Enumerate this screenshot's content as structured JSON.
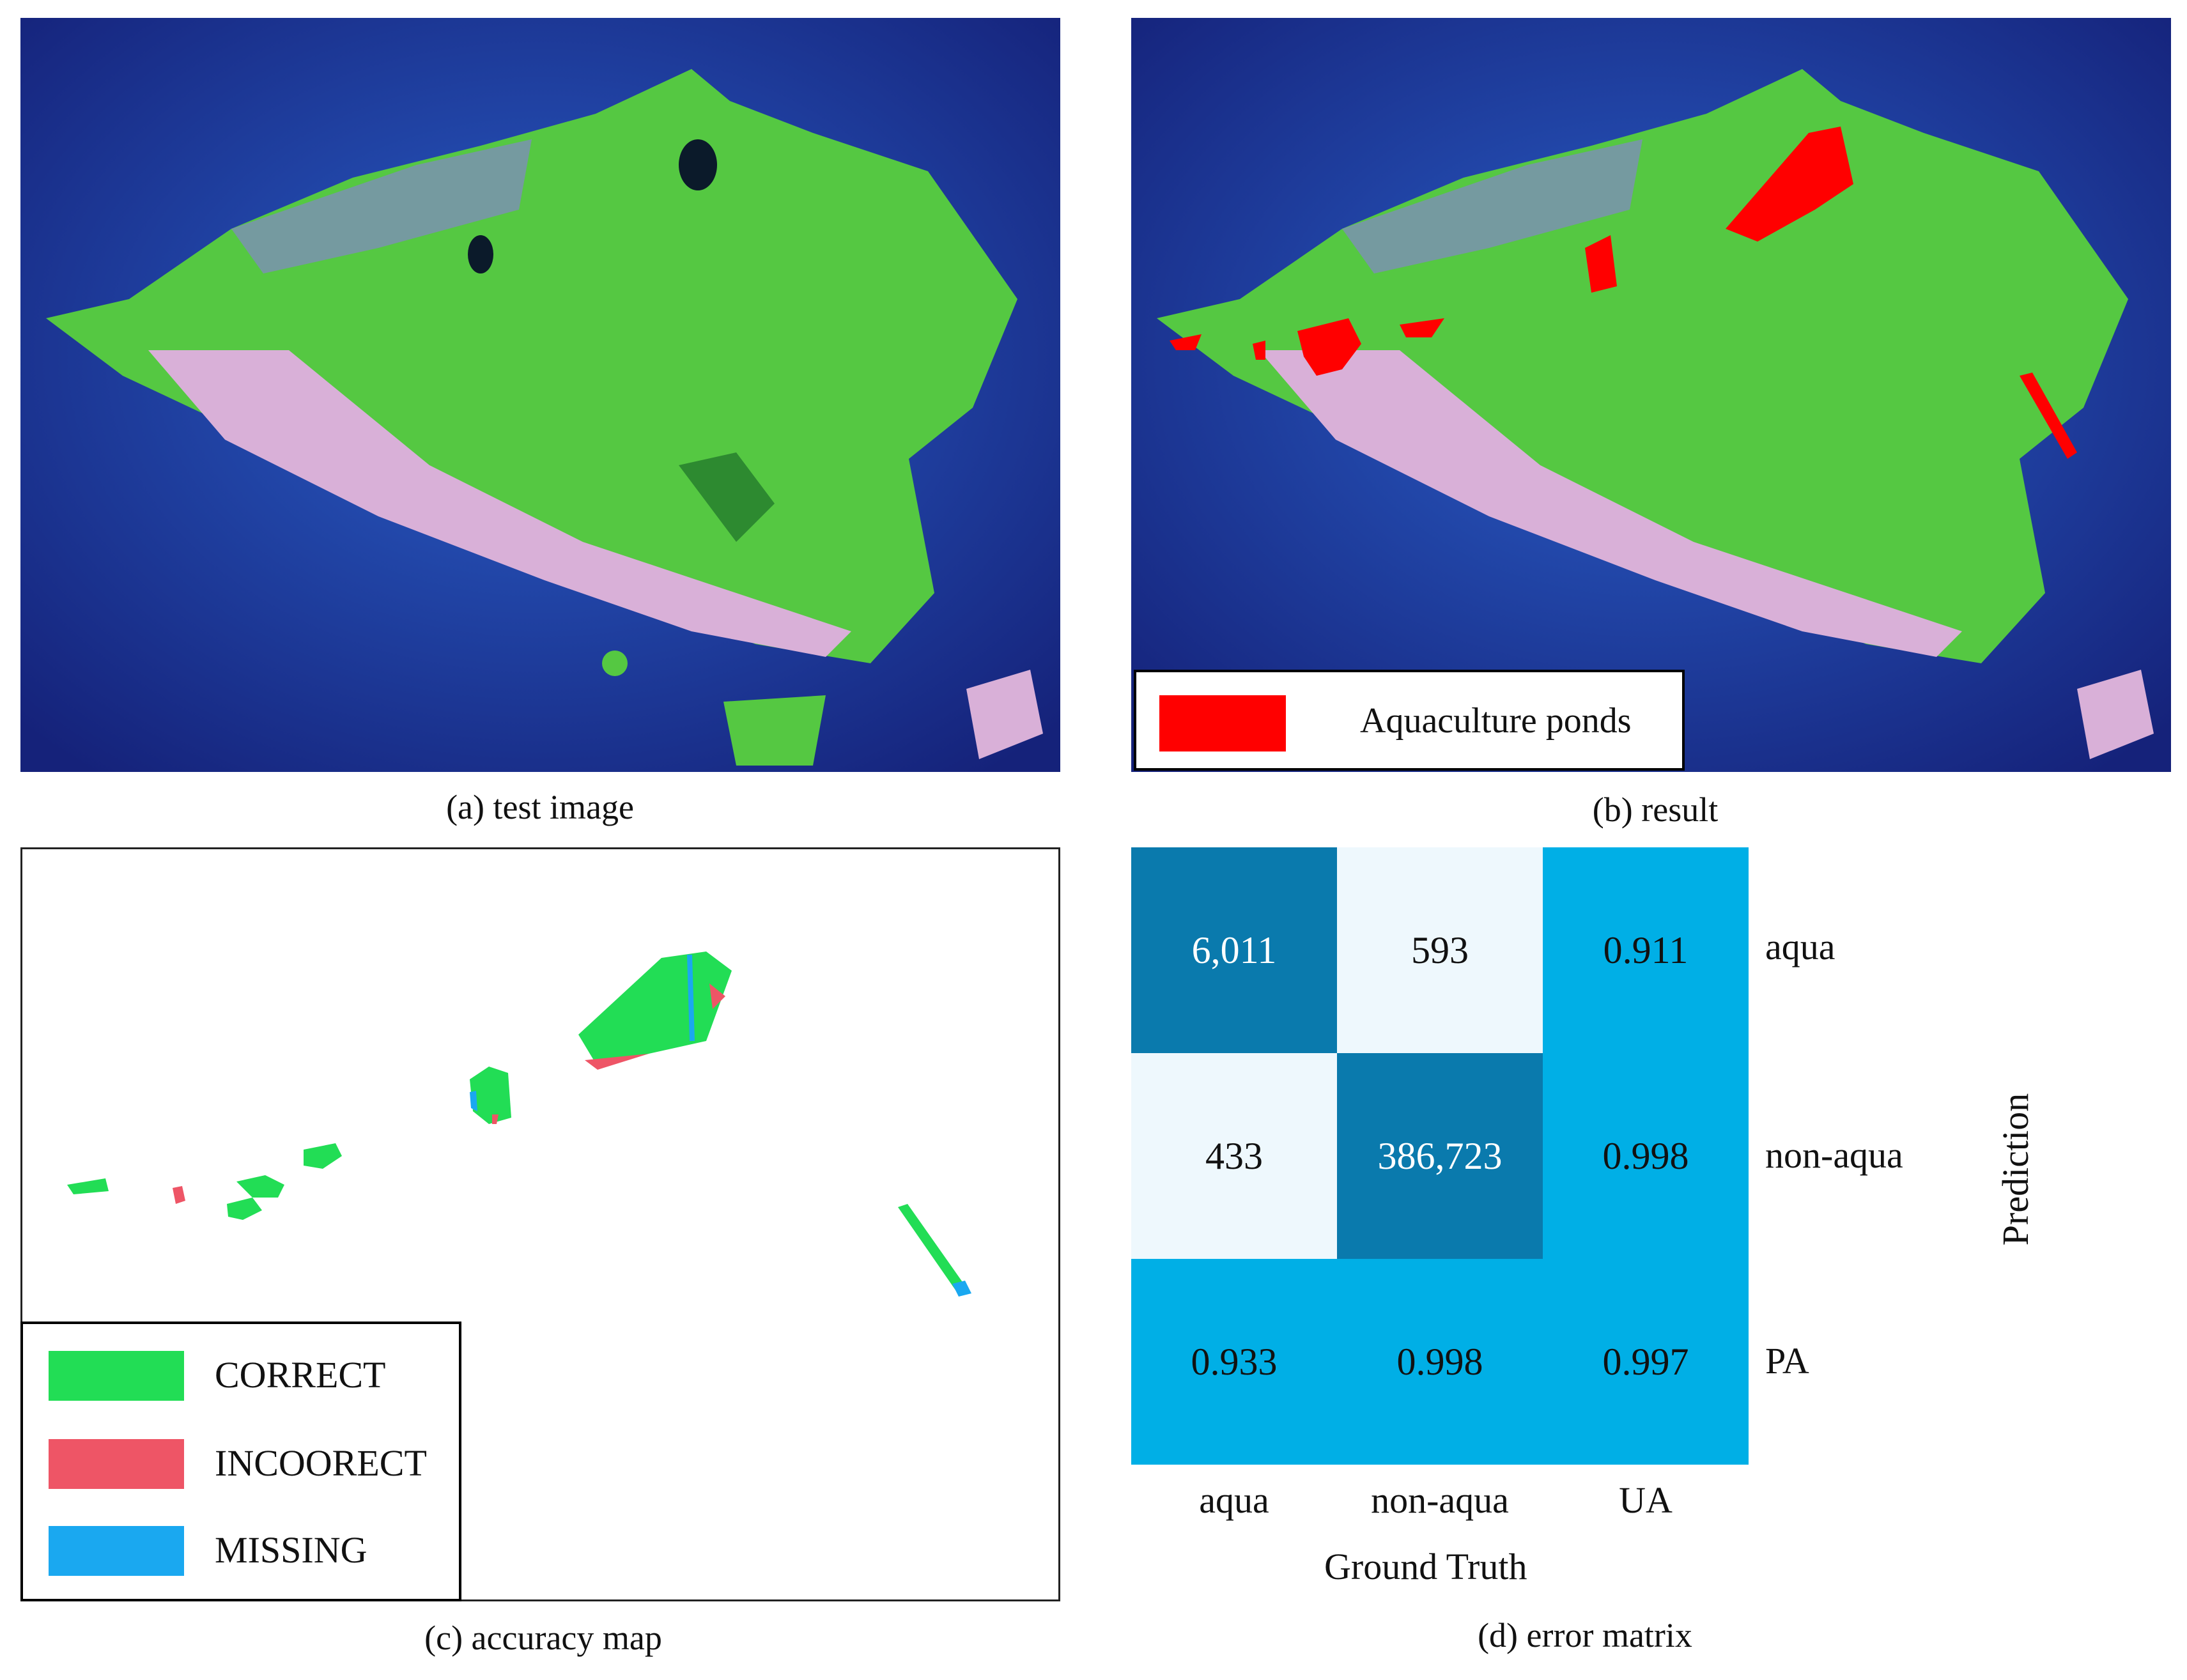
{
  "panel_a": {
    "caption": "(a) test image"
  },
  "panel_b": {
    "caption": "(b) result",
    "legend": {
      "label": "Aquaculture ponds",
      "color": "#ff0000"
    }
  },
  "panel_c": {
    "caption": "(c) accuracy map",
    "legend": [
      {
        "label": "CORRECT",
        "color": "#22dd55"
      },
      {
        "label": "INCOORECT",
        "color": "#ee5566"
      },
      {
        "label": "MISSING",
        "color": "#1aa8f0"
      }
    ]
  },
  "panel_d": {
    "caption": "(d) error matrix",
    "x_axis_label": "Ground Truth",
    "y_axis_label": "Prediction",
    "column_labels": [
      "aqua",
      "non-aqua",
      "UA"
    ],
    "row_labels": [
      "aqua",
      "non-aqua",
      "PA"
    ],
    "cells": [
      [
        "6,011",
        "593",
        "0.911"
      ],
      [
        "433",
        "386,723",
        "0.998"
      ],
      [
        "0.933",
        "0.998",
        "0.997"
      ]
    ],
    "colors": {
      "dark": "#0a7aad",
      "light": "#eef8fd",
      "mid": "#00afe6"
    }
  }
}
